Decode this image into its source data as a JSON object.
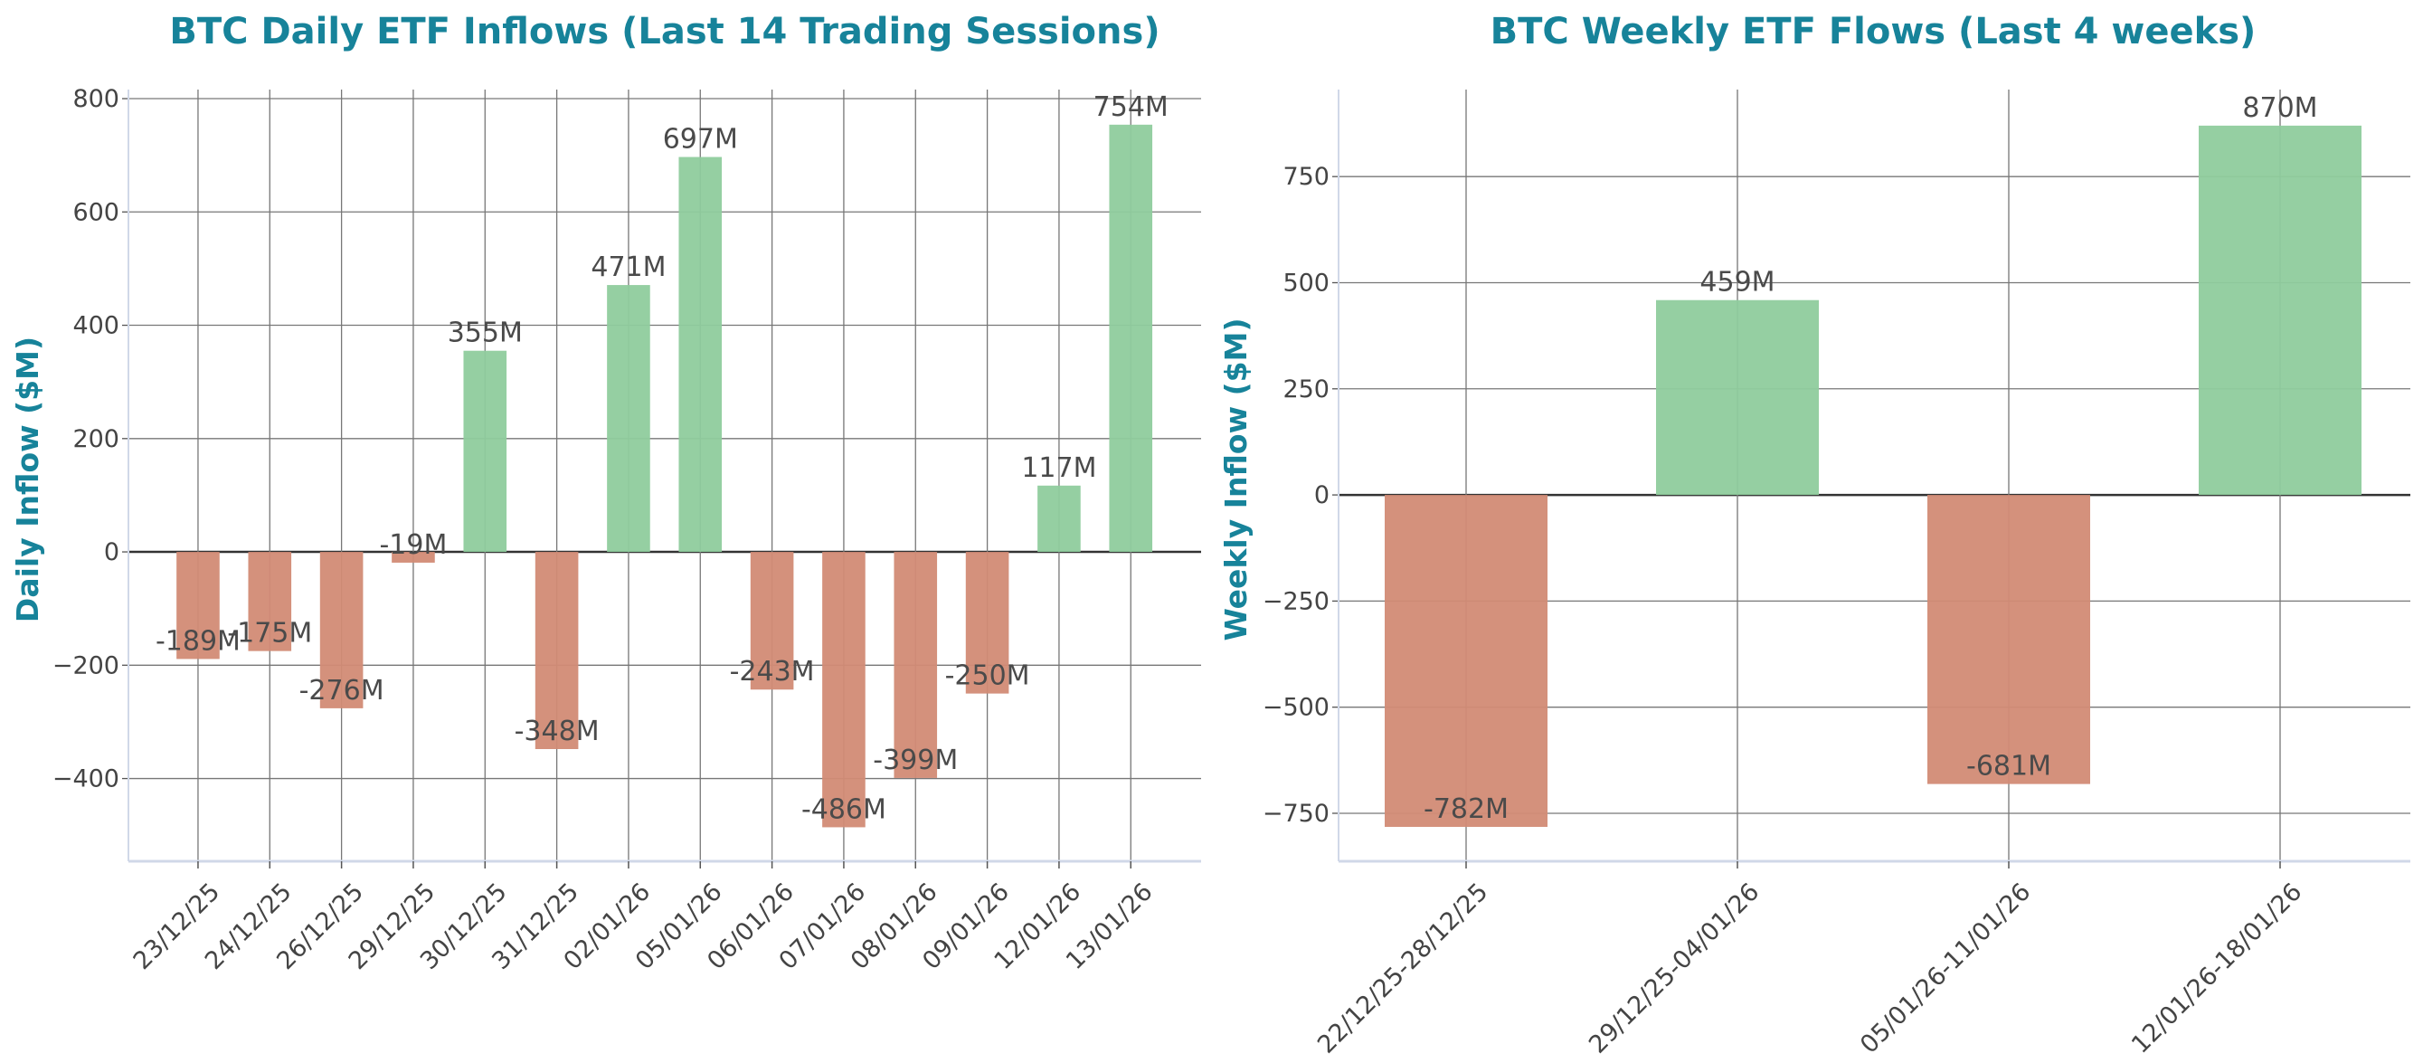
{
  "colors": {
    "title": "#17839a",
    "positive": "#8fcc9d",
    "negative": "#d28b75",
    "text": "#4a4a4a",
    "grid": "#777777",
    "zero_line": "#333333",
    "spine": "#d0d8e8"
  },
  "chart_data": [
    {
      "type": "bar",
      "title": "BTC Daily ETF Inflows (Last 14 Trading Sessions)",
      "xlabel": "",
      "ylabel": "Daily Inflow ($M)",
      "categories": [
        "23/12/25",
        "24/12/25",
        "26/12/25",
        "29/12/25",
        "30/12/25",
        "31/12/25",
        "02/01/26",
        "05/01/26",
        "06/01/26",
        "07/01/26",
        "08/01/26",
        "09/01/26",
        "12/01/26",
        "13/01/26"
      ],
      "values": [
        -189,
        -175,
        -276,
        -19,
        355,
        -348,
        471,
        697,
        -243,
        -486,
        -399,
        -250,
        117,
        754
      ],
      "data_labels": [
        "-189M",
        "-175M",
        "-276M",
        "-19M",
        "355M",
        "-348M",
        "471M",
        "697M",
        "-243M",
        "-486M",
        "-399M",
        "-250M",
        "117M",
        "754M"
      ],
      "yticks": [
        -400,
        -200,
        0,
        200,
        400,
        600,
        800
      ],
      "ytick_labels": [
        "−400",
        "−200",
        "0",
        "200",
        "400",
        "600",
        "800"
      ],
      "ylim": [
        -546,
        816
      ],
      "grid": true
    },
    {
      "type": "bar",
      "title": "BTC Weekly ETF Flows (Last 4 weeks)",
      "xlabel": "",
      "ylabel": "Weekly Inflow ($M)",
      "categories": [
        "22/12/25-28/12/25",
        "29/12/25-04/01/26",
        "05/01/26-11/01/26",
        "12/01/26-18/01/26"
      ],
      "values": [
        -782,
        459,
        -681,
        870
      ],
      "data_labels": [
        "-782M",
        "459M",
        "-681M",
        "870M"
      ],
      "yticks": [
        -750,
        -500,
        -250,
        0,
        250,
        500,
        750
      ],
      "ytick_labels": [
        "−750",
        "−500",
        "−250",
        "0",
        "250",
        "500",
        "750"
      ],
      "ylim": [
        -863,
        955
      ],
      "grid": true
    }
  ]
}
